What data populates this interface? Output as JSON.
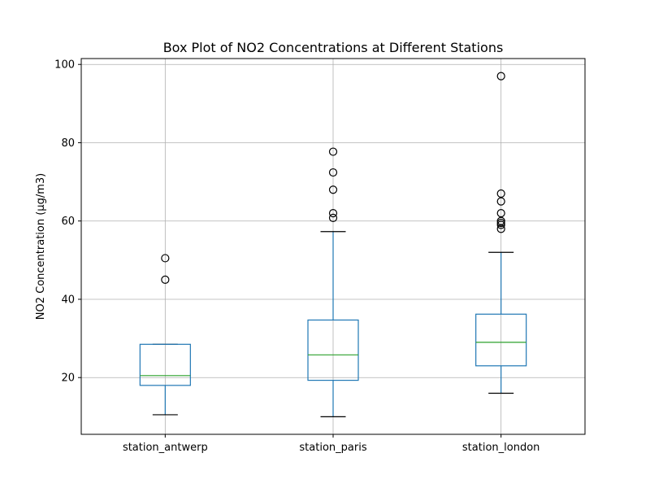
{
  "chart_data": {
    "type": "box",
    "title": "Box Plot of NO2 Concentrations at Different Stations",
    "xlabel": "",
    "ylabel": "NO2 Concentration (µg/m3)",
    "ylim": [
      5.5,
      101.5
    ],
    "yticks": [
      20,
      40,
      60,
      80,
      100
    ],
    "grid": true,
    "categories": [
      "station_antwerp",
      "station_paris",
      "station_london"
    ],
    "series": [
      {
        "category": "station_antwerp",
        "whisker_low": 10.5,
        "q1": 18.0,
        "median": 20.5,
        "q3": 28.5,
        "whisker_high": 28.5,
        "outliers": [
          45.0,
          50.5
        ]
      },
      {
        "category": "station_paris",
        "whisker_low": 10.0,
        "q1": 19.3,
        "median": 25.8,
        "q3": 34.7,
        "whisker_high": 57.3,
        "outliers": [
          60.8,
          62.0,
          68.0,
          72.4,
          77.7
        ]
      },
      {
        "category": "station_london",
        "whisker_low": 16.0,
        "q1": 23.0,
        "median": 29.0,
        "q3": 36.2,
        "whisker_high": 52.0,
        "outliers": [
          58.0,
          59.0,
          59.5,
          60.0,
          62.0,
          65.0,
          67.0,
          97.0
        ]
      }
    ],
    "colors": {
      "box": "#1f77b4",
      "median": "#2ca02c",
      "caps": "#000000",
      "outliers": "#000000",
      "grid": "#b0b0b0"
    }
  }
}
